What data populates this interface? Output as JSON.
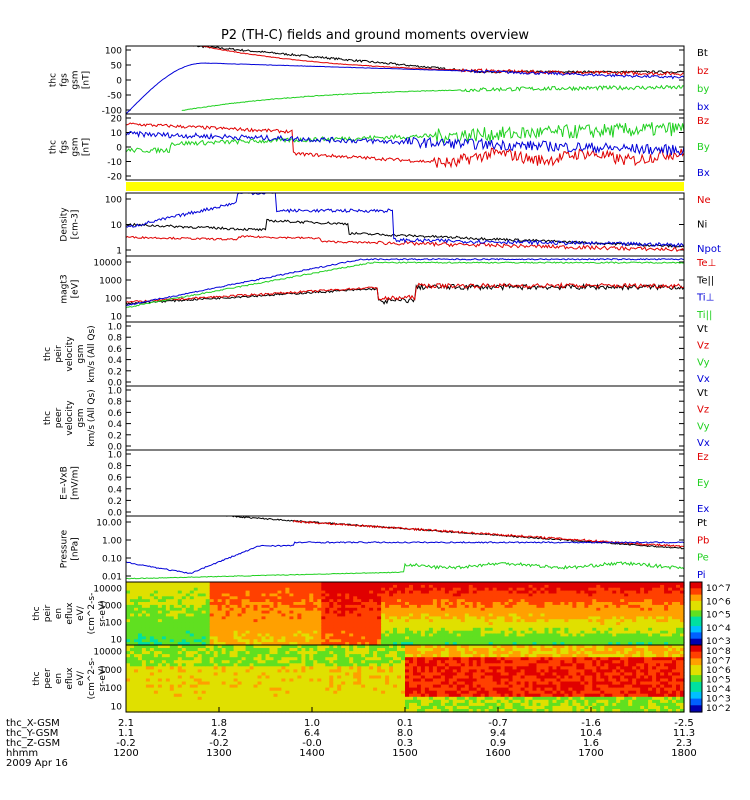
{
  "title": "P2 (TH-C) fields and ground moments overview",
  "colors": {
    "black": "#000000",
    "red": "#e00000",
    "green": "#20d020",
    "blue": "#0000d8",
    "yellow": "#ffff00"
  },
  "chart_data": {
    "type": "line",
    "panels": [
      {
        "id": "p1",
        "ylabel": [
          "thc",
          "fgs",
          "gsm",
          "[nT]"
        ],
        "yticks": [
          "100",
          "50",
          "0",
          "-50",
          "-100"
        ],
        "legend": [
          {
            "t": "Bt",
            "c": "black"
          },
          {
            "t": "bz",
            "c": "red"
          },
          {
            "t": "by",
            "c": "green"
          },
          {
            "t": "bx",
            "c": "blue"
          }
        ]
      },
      {
        "id": "p2",
        "ylabel": [
          "thc",
          "fgs",
          "gsm",
          "[nT]"
        ],
        "yticks": [
          "20",
          "10",
          "0",
          "-10",
          "-20"
        ],
        "legend": [
          {
            "t": "Bz",
            "c": "red"
          },
          {
            "t": "By",
            "c": "green"
          },
          {
            "t": "Bx",
            "c": "blue"
          }
        ]
      },
      {
        "id": "p3",
        "ylabel": [
          "Density",
          "[cm-3]"
        ],
        "yticks": [
          "100",
          "10",
          "1"
        ],
        "legend": [
          {
            "t": "Ne",
            "c": "red"
          },
          {
            "t": "Ni",
            "c": "black"
          },
          {
            "t": "Npot",
            "c": "blue"
          }
        ]
      },
      {
        "id": "p4",
        "ylabel": [
          "magt3",
          "[eV]"
        ],
        "yticks": [
          "10000",
          "1000",
          "100",
          "10"
        ],
        "legend": [
          {
            "t": "Te⊥",
            "c": "red"
          },
          {
            "t": "Te||",
            "c": "black"
          },
          {
            "t": "Ti⊥",
            "c": "blue"
          },
          {
            "t": "Ti||",
            "c": "green"
          }
        ]
      },
      {
        "id": "p5",
        "ylabel": [
          "thc",
          "peir",
          "velocity",
          "gsm",
          "km/s (All Qs)"
        ],
        "yticks": [
          "1.0",
          "0.8",
          "0.6",
          "0.4",
          "0.2",
          "0.0"
        ],
        "legend": [
          {
            "t": "Vt",
            "c": "black"
          },
          {
            "t": "Vz",
            "c": "red"
          },
          {
            "t": "Vy",
            "c": "green"
          },
          {
            "t": "Vx",
            "c": "blue"
          }
        ]
      },
      {
        "id": "p6",
        "ylabel": [
          "thc",
          "peer",
          "velocity",
          "gsm",
          "km/s (All Qs)"
        ],
        "yticks": [
          "1.0",
          "0.8",
          "0.6",
          "0.4",
          "0.2",
          "0.0"
        ],
        "legend": [
          {
            "t": "Vt",
            "c": "black"
          },
          {
            "t": "Vz",
            "c": "red"
          },
          {
            "t": "Vy",
            "c": "green"
          },
          {
            "t": "Vx",
            "c": "blue"
          }
        ]
      },
      {
        "id": "p7",
        "ylabel": [
          "E=-VxB",
          "[mV/m]"
        ],
        "yticks": [
          "1.0",
          "0.8",
          "0.6",
          "0.4",
          "0.2",
          "0.0"
        ],
        "legend": [
          {
            "t": "Ez",
            "c": "red"
          },
          {
            "t": "Ey",
            "c": "green"
          },
          {
            "t": "Ex",
            "c": "blue"
          }
        ]
      },
      {
        "id": "p8",
        "ylabel": [
          "Pressure",
          "[nPa]"
        ],
        "yticks": [
          "10.00",
          "1.00",
          "0.10",
          "0.01"
        ],
        "legend": [
          {
            "t": "Pt",
            "c": "black"
          },
          {
            "t": "Pb",
            "c": "red"
          },
          {
            "t": "Pe",
            "c": "green"
          },
          {
            "t": "Pi",
            "c": "blue"
          }
        ]
      },
      {
        "id": "p9",
        "ylabel": [
          "thc",
          "peir",
          "en",
          "eflux",
          "eV/",
          "(cm^2-s-",
          "sr-eV)"
        ],
        "yticks": [
          "10000",
          "1000",
          "100",
          "10"
        ],
        "cbar": [
          "10^7",
          "10^6",
          "10^5",
          "10^4",
          "10^3"
        ]
      },
      {
        "id": "p10",
        "ylabel": [
          "thc",
          "peer",
          "en",
          "eflux",
          "eV/",
          "(cm^2-s-",
          "sr-eV)"
        ],
        "yticks": [
          "10000",
          "1000",
          "100",
          "10"
        ],
        "cbar": [
          "10^8",
          "10^7",
          "10^6",
          "10^5",
          "10^4",
          "10^3",
          "10^2"
        ]
      }
    ],
    "xaxis": {
      "rows": [
        {
          "name": "thc_X-GSM",
          "values": [
            "2.1",
            "1.8",
            "1.0",
            "0.1",
            "-0.7",
            "-1.6",
            "-2.5"
          ]
        },
        {
          "name": "thc_Y-GSM",
          "values": [
            "1.1",
            "4.2",
            "6.4",
            "8.0",
            "9.4",
            "10.4",
            "11.3"
          ]
        },
        {
          "name": "thc_Z-GSM",
          "values": [
            "-0.2",
            "-0.2",
            "-0.0",
            "0.3",
            "0.9",
            "1.6",
            "2.3"
          ]
        },
        {
          "name": "hhmm",
          "values": [
            "1200",
            "1300",
            "1400",
            "1500",
            "1600",
            "1700",
            "1800"
          ]
        }
      ],
      "date": "2009 Apr 16"
    }
  }
}
